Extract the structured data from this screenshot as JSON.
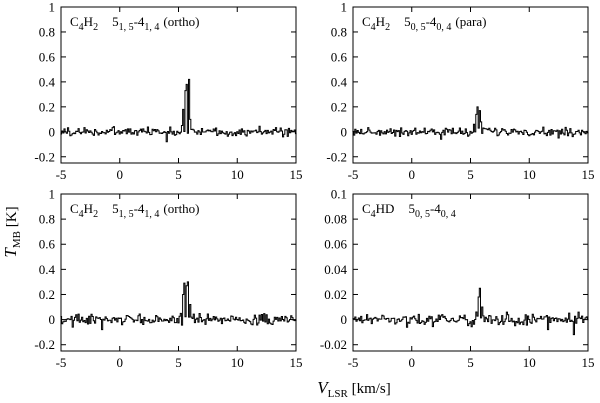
{
  "chart_data": {
    "type": "line",
    "xlabel": {
      "main": "V",
      "sub": "LSR",
      "unit": " [km/s]"
    },
    "ylabel": {
      "main": "T",
      "sub": "MB",
      "unit": " [K]"
    },
    "panels": [
      {
        "label": "C4H2 5(1,5)-4(1,4) (ortho)",
        "label_parts": [
          {
            "t": "C",
            "s": "n"
          },
          {
            "t": "4",
            "s": "sub"
          },
          {
            "t": "H",
            "s": "n"
          },
          {
            "t": "2",
            "s": "sub"
          },
          {
            "t": "5",
            "s": "n",
            "gap": 1
          },
          {
            "t": "1, 5",
            "s": "sub"
          },
          {
            "t": "-4",
            "s": "n"
          },
          {
            "t": "1, 4",
            "s": "sub"
          },
          {
            "t": "(ortho)",
            "s": "n",
            "space": true
          }
        ],
        "xlim": [
          -5,
          15
        ],
        "ylim": [
          -0.25,
          1.0
        ],
        "xticks": [
          -5,
          0,
          5,
          10,
          15
        ],
        "yticks": [
          -0.2,
          0,
          0.2,
          0.4,
          0.6,
          0.8,
          1
        ],
        "ytick_labels": [
          "-0.2",
          "0",
          "0.2",
          "0.4",
          "0.6",
          "0.8",
          "1"
        ],
        "noise": 0.022,
        "dips": [
          [
            4.0,
            -0.08
          ]
        ],
        "features": [
          {
            "x": [
              5.25,
              5.4,
              5.55,
              5.7,
              5.85,
              6.0,
              6.15
            ],
            "y": [
              0.05,
              0.18,
              0.33,
              0.38,
              0.42,
              0.1,
              0.02
            ]
          }
        ]
      },
      {
        "label": "C4H2 5(0,5)-4(0,4) (para)",
        "label_parts": [
          {
            "t": "C",
            "s": "n"
          },
          {
            "t": "4",
            "s": "sub"
          },
          {
            "t": "H",
            "s": "n"
          },
          {
            "t": "2",
            "s": "sub"
          },
          {
            "t": "5",
            "s": "n",
            "gap": 1
          },
          {
            "t": "0, 5",
            "s": "sub"
          },
          {
            "t": "-4",
            "s": "n"
          },
          {
            "t": "0, 4",
            "s": "sub"
          },
          {
            "t": "(para)",
            "s": "n",
            "space": true
          }
        ],
        "xlim": [
          -5,
          15
        ],
        "ylim": [
          -0.25,
          1.0
        ],
        "xticks": [
          -5,
          0,
          5,
          10,
          15
        ],
        "yticks": [
          -0.2,
          0,
          0.2,
          0.4,
          0.6,
          0.8,
          1
        ],
        "ytick_labels": [
          "-0.2",
          "0",
          "0.2",
          "0.4",
          "0.6",
          "0.8",
          "1"
        ],
        "noise": 0.02,
        "dips": [
          [
            2.5,
            -0.06
          ],
          [
            12.5,
            -0.05
          ]
        ],
        "features": [
          {
            "x": [
              5.3,
              5.45,
              5.6,
              5.75,
              5.9,
              6.05
            ],
            "y": [
              0.06,
              0.14,
              0.2,
              0.17,
              0.08,
              0.03
            ]
          }
        ]
      },
      {
        "label": "C4H2 5(1,5)-4(1,4) (ortho)",
        "label_parts": [
          {
            "t": "C",
            "s": "n"
          },
          {
            "t": "4",
            "s": "sub"
          },
          {
            "t": "H",
            "s": "n"
          },
          {
            "t": "2",
            "s": "sub"
          },
          {
            "t": "5",
            "s": "n",
            "gap": 1
          },
          {
            "t": "1, 5",
            "s": "sub"
          },
          {
            "t": "-4",
            "s": "n"
          },
          {
            "t": "1, 4",
            "s": "sub"
          },
          {
            "t": "(ortho)",
            "s": "n",
            "space": true
          }
        ],
        "xlim": [
          -5,
          15
        ],
        "ylim": [
          -0.25,
          1.0
        ],
        "xticks": [
          -5,
          0,
          5,
          10,
          15
        ],
        "yticks": [
          -0.2,
          0,
          0.2,
          0.4,
          0.6,
          0.8,
          1
        ],
        "ytick_labels": [
          "-0.2",
          "0",
          "0.2",
          "0.4",
          "0.6",
          "0.8",
          "1"
        ],
        "noise": 0.025,
        "dips": [
          [
            -1.5,
            -0.08
          ],
          [
            -4.0,
            -0.06
          ]
        ],
        "features": [
          {
            "x": [
              5.2,
              5.35,
              5.5,
              5.65,
              5.8,
              5.95,
              6.1
            ],
            "y": [
              0.05,
              0.2,
              0.29,
              0.27,
              0.3,
              0.12,
              0.02
            ]
          }
        ]
      },
      {
        "label": "C4HD 5(0,5)-4(0,4)",
        "label_parts": [
          {
            "t": "C",
            "s": "n"
          },
          {
            "t": "4",
            "s": "sub"
          },
          {
            "t": "HD",
            "s": "n"
          },
          {
            "t": "5",
            "s": "n",
            "gap": 1
          },
          {
            "t": "0, 5",
            "s": "sub"
          },
          {
            "t": "-4",
            "s": "n"
          },
          {
            "t": "0, 4",
            "s": "sub"
          }
        ],
        "xlim": [
          -5,
          15
        ],
        "ylim": [
          -0.025,
          0.1
        ],
        "xticks": [
          -5,
          0,
          5,
          10,
          15
        ],
        "yticks": [
          -0.02,
          0,
          0.02,
          0.04,
          0.06,
          0.08,
          0.1
        ],
        "ytick_labels": [
          "-0.02",
          "0",
          "0.02",
          "0.04",
          "0.06",
          "0.08",
          "0.1"
        ],
        "noise": 0.0028,
        "dips": [
          [
            13.8,
            -0.012
          ],
          [
            11.6,
            -0.008
          ]
        ],
        "features": [
          {
            "x": [
              5.5,
              5.65,
              5.8,
              5.95,
              6.1
            ],
            "y": [
              0.006,
              0.018,
              0.025,
              0.01,
              0.003
            ]
          }
        ]
      }
    ]
  }
}
